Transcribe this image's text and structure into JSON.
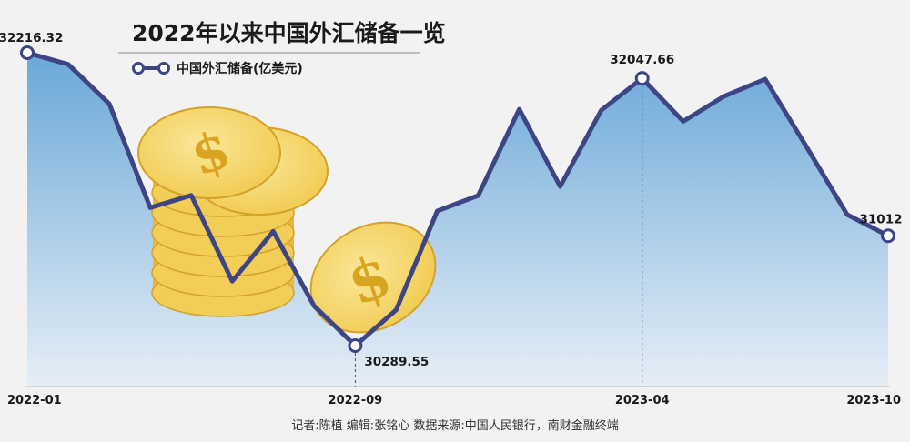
{
  "chart_data": {
    "type": "area",
    "title": "2022年以来中国外汇储备一览",
    "legend": "中国外汇储备(亿美元)",
    "x": [
      "2022-01",
      "2022-02",
      "2022-03",
      "2022-04",
      "2022-05",
      "2022-06",
      "2022-07",
      "2022-08",
      "2022-09",
      "2022-10",
      "2022-11",
      "2022-12",
      "2023-01",
      "2023-02",
      "2023-03",
      "2023-04",
      "2023-05",
      "2023-06",
      "2023-07",
      "2023-08",
      "2023-09",
      "2023-10"
    ],
    "values": [
      32216.32,
      32140,
      31880,
      31197,
      31278,
      30713,
      31041,
      30549,
      30289.55,
      30524,
      31175,
      31277,
      31845,
      31337,
      31838,
      32047.66,
      31765,
      31930,
      32043,
      31601,
      31151,
      31012
    ],
    "xticks": [
      "2022-01",
      "2022-09",
      "2023-04",
      "2023-10"
    ],
    "data_labels": [
      {
        "x": "2022-01",
        "text": "32216.32"
      },
      {
        "x": "2022-09",
        "text": "30289.55"
      },
      {
        "x": "2023-04",
        "text": "32047.66"
      },
      {
        "x": "2023-10",
        "text": "31012"
      }
    ],
    "ylim": [
      29950,
      32300
    ],
    "colors": {
      "line": "#3e4585",
      "area_top": "#6aa8d8",
      "area_bottom": "#e6eef6",
      "coin": "#f5d469",
      "coin_dark": "#c79a1f"
    }
  },
  "footer": "记者:陈植    编辑:张铭心    数据来源:中国人民银行，南财金融终端"
}
